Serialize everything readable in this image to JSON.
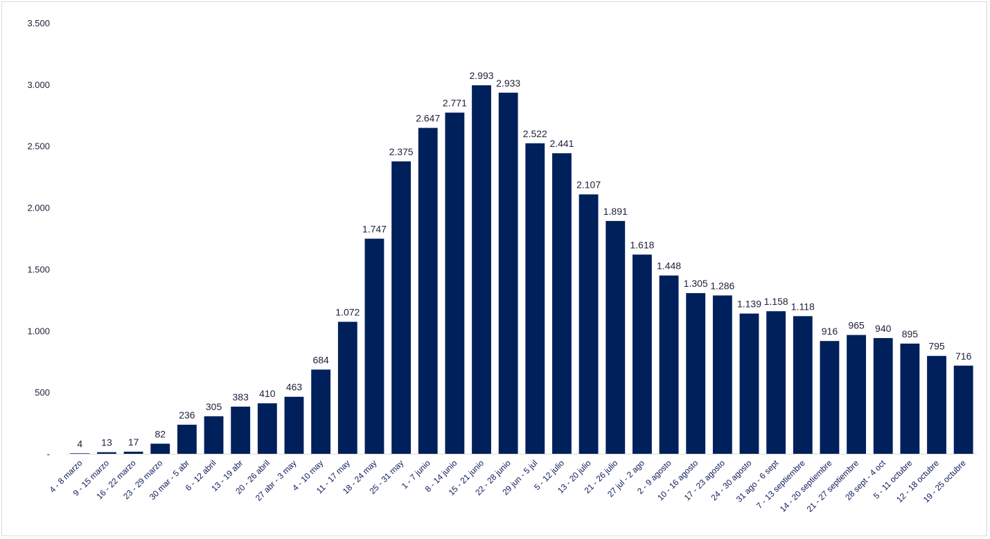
{
  "chart_data": {
    "type": "bar",
    "title": "",
    "xlabel": "",
    "ylabel": "",
    "ylim": [
      0,
      3500
    ],
    "yticks": [
      {
        "value": 0,
        "label": "-"
      },
      {
        "value": 500,
        "label": "500"
      },
      {
        "value": 1000,
        "label": "1.000"
      },
      {
        "value": 1500,
        "label": "1.500"
      },
      {
        "value": 2000,
        "label": "2.000"
      },
      {
        "value": 2500,
        "label": "2.500"
      },
      {
        "value": 3000,
        "label": "3.000"
      },
      {
        "value": 3500,
        "label": "3.500"
      }
    ],
    "grid": false,
    "legend": "none",
    "bar_color": "#00205b",
    "categories": [
      "4 - 8 marzo",
      "9 - 15 marzo",
      "16 - 22 marzo",
      "23 - 29 marzo",
      "30 mar - 5 abr",
      "6 - 12 abril",
      "13 - 19 abr",
      "20 - 26 abril",
      "27 abr - 3 may",
      "4 - 10 may",
      "11 - 17 may",
      "18 - 24 may",
      "25 - 31 may",
      "1 - 7 junio",
      "8 - 14 junio",
      "15 - 21 junio",
      "22 - 28 junio",
      "29 jun - 5 jul",
      "5 - 12 julio",
      "13 - 20 julio",
      "21 - 26 julio",
      "27 jul - 2 ago",
      "2 - 9 agosto",
      "10 - 16 agosto",
      "17 - 23 agosto",
      "24 - 30 agosto",
      "31 ago - 6 sept",
      "7 - 13 septiembre",
      "14 - 20 septiembre",
      "21 - 27 septiembre",
      "28 sept - 4 oct",
      "5 - 11 octubre",
      "12 - 18 octubre",
      "19 - 25 octubre"
    ],
    "values": [
      4,
      13,
      17,
      82,
      236,
      305,
      383,
      410,
      463,
      684,
      1072,
      1747,
      2375,
      2647,
      2771,
      2993,
      2933,
      2522,
      2441,
      2107,
      1891,
      1618,
      1448,
      1305,
      1286,
      1139,
      1158,
      1118,
      916,
      965,
      940,
      895,
      795,
      716
    ],
    "data_labels": [
      "4",
      "13",
      "17",
      "82",
      "236",
      "305",
      "383",
      "410",
      "463",
      "684",
      "1.072",
      "1.747",
      "2.375",
      "2.647",
      "2.771",
      "2.993",
      "2.933",
      "2.522",
      "2.441",
      "2.107",
      "1.891",
      "1.618",
      "1.448",
      "1.305",
      "1.286",
      "1.139",
      "1.158",
      "1.118",
      "916",
      "965",
      "940",
      "895",
      "795",
      "716"
    ]
  }
}
